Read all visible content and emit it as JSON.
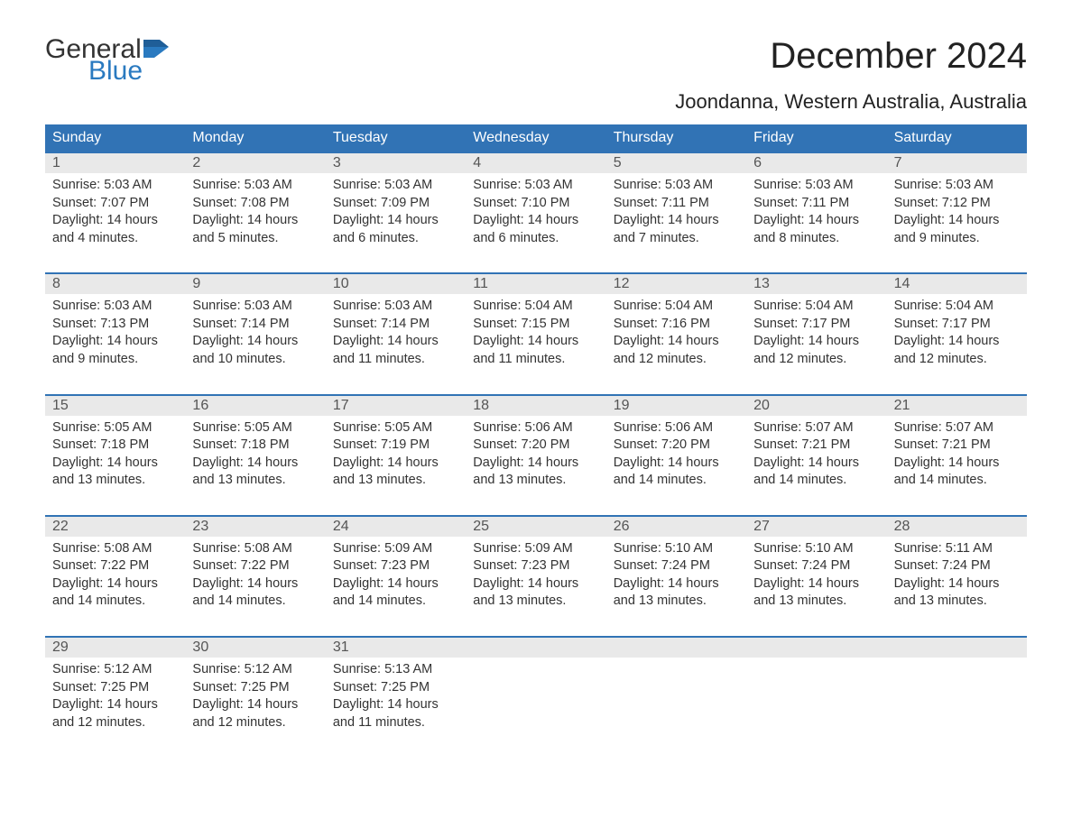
{
  "logo": {
    "word1": "General",
    "word2": "Blue",
    "flag_color": "#2a7ac0",
    "text_color": "#333333"
  },
  "title": "December 2024",
  "subtitle": "Joondanna, Western Australia, Australia",
  "colors": {
    "header_bg": "#3173b5",
    "header_text": "#ffffff",
    "daynum_bg": "#e9e9e9",
    "week_border": "#3173b5",
    "body_text": "#333333",
    "background": "#ffffff"
  },
  "typography": {
    "title_fontsize": 40,
    "subtitle_fontsize": 22,
    "dow_fontsize": 16,
    "day_fontsize": 14.5,
    "font_family": "Arial"
  },
  "days_of_week": [
    "Sunday",
    "Monday",
    "Tuesday",
    "Wednesday",
    "Thursday",
    "Friday",
    "Saturday"
  ],
  "weeks": [
    [
      {
        "n": "1",
        "sunrise": "Sunrise: 5:03 AM",
        "sunset": "Sunset: 7:07 PM",
        "d1": "Daylight: 14 hours",
        "d2": "and 4 minutes."
      },
      {
        "n": "2",
        "sunrise": "Sunrise: 5:03 AM",
        "sunset": "Sunset: 7:08 PM",
        "d1": "Daylight: 14 hours",
        "d2": "and 5 minutes."
      },
      {
        "n": "3",
        "sunrise": "Sunrise: 5:03 AM",
        "sunset": "Sunset: 7:09 PM",
        "d1": "Daylight: 14 hours",
        "d2": "and 6 minutes."
      },
      {
        "n": "4",
        "sunrise": "Sunrise: 5:03 AM",
        "sunset": "Sunset: 7:10 PM",
        "d1": "Daylight: 14 hours",
        "d2": "and 6 minutes."
      },
      {
        "n": "5",
        "sunrise": "Sunrise: 5:03 AM",
        "sunset": "Sunset: 7:11 PM",
        "d1": "Daylight: 14 hours",
        "d2": "and 7 minutes."
      },
      {
        "n": "6",
        "sunrise": "Sunrise: 5:03 AM",
        "sunset": "Sunset: 7:11 PM",
        "d1": "Daylight: 14 hours",
        "d2": "and 8 minutes."
      },
      {
        "n": "7",
        "sunrise": "Sunrise: 5:03 AM",
        "sunset": "Sunset: 7:12 PM",
        "d1": "Daylight: 14 hours",
        "d2": "and 9 minutes."
      }
    ],
    [
      {
        "n": "8",
        "sunrise": "Sunrise: 5:03 AM",
        "sunset": "Sunset: 7:13 PM",
        "d1": "Daylight: 14 hours",
        "d2": "and 9 minutes."
      },
      {
        "n": "9",
        "sunrise": "Sunrise: 5:03 AM",
        "sunset": "Sunset: 7:14 PM",
        "d1": "Daylight: 14 hours",
        "d2": "and 10 minutes."
      },
      {
        "n": "10",
        "sunrise": "Sunrise: 5:03 AM",
        "sunset": "Sunset: 7:14 PM",
        "d1": "Daylight: 14 hours",
        "d2": "and 11 minutes."
      },
      {
        "n": "11",
        "sunrise": "Sunrise: 5:04 AM",
        "sunset": "Sunset: 7:15 PM",
        "d1": "Daylight: 14 hours",
        "d2": "and 11 minutes."
      },
      {
        "n": "12",
        "sunrise": "Sunrise: 5:04 AM",
        "sunset": "Sunset: 7:16 PM",
        "d1": "Daylight: 14 hours",
        "d2": "and 12 minutes."
      },
      {
        "n": "13",
        "sunrise": "Sunrise: 5:04 AM",
        "sunset": "Sunset: 7:17 PM",
        "d1": "Daylight: 14 hours",
        "d2": "and 12 minutes."
      },
      {
        "n": "14",
        "sunrise": "Sunrise: 5:04 AM",
        "sunset": "Sunset: 7:17 PM",
        "d1": "Daylight: 14 hours",
        "d2": "and 12 minutes."
      }
    ],
    [
      {
        "n": "15",
        "sunrise": "Sunrise: 5:05 AM",
        "sunset": "Sunset: 7:18 PM",
        "d1": "Daylight: 14 hours",
        "d2": "and 13 minutes."
      },
      {
        "n": "16",
        "sunrise": "Sunrise: 5:05 AM",
        "sunset": "Sunset: 7:18 PM",
        "d1": "Daylight: 14 hours",
        "d2": "and 13 minutes."
      },
      {
        "n": "17",
        "sunrise": "Sunrise: 5:05 AM",
        "sunset": "Sunset: 7:19 PM",
        "d1": "Daylight: 14 hours",
        "d2": "and 13 minutes."
      },
      {
        "n": "18",
        "sunrise": "Sunrise: 5:06 AM",
        "sunset": "Sunset: 7:20 PM",
        "d1": "Daylight: 14 hours",
        "d2": "and 13 minutes."
      },
      {
        "n": "19",
        "sunrise": "Sunrise: 5:06 AM",
        "sunset": "Sunset: 7:20 PM",
        "d1": "Daylight: 14 hours",
        "d2": "and 14 minutes."
      },
      {
        "n": "20",
        "sunrise": "Sunrise: 5:07 AM",
        "sunset": "Sunset: 7:21 PM",
        "d1": "Daylight: 14 hours",
        "d2": "and 14 minutes."
      },
      {
        "n": "21",
        "sunrise": "Sunrise: 5:07 AM",
        "sunset": "Sunset: 7:21 PM",
        "d1": "Daylight: 14 hours",
        "d2": "and 14 minutes."
      }
    ],
    [
      {
        "n": "22",
        "sunrise": "Sunrise: 5:08 AM",
        "sunset": "Sunset: 7:22 PM",
        "d1": "Daylight: 14 hours",
        "d2": "and 14 minutes."
      },
      {
        "n": "23",
        "sunrise": "Sunrise: 5:08 AM",
        "sunset": "Sunset: 7:22 PM",
        "d1": "Daylight: 14 hours",
        "d2": "and 14 minutes."
      },
      {
        "n": "24",
        "sunrise": "Sunrise: 5:09 AM",
        "sunset": "Sunset: 7:23 PM",
        "d1": "Daylight: 14 hours",
        "d2": "and 14 minutes."
      },
      {
        "n": "25",
        "sunrise": "Sunrise: 5:09 AM",
        "sunset": "Sunset: 7:23 PM",
        "d1": "Daylight: 14 hours",
        "d2": "and 13 minutes."
      },
      {
        "n": "26",
        "sunrise": "Sunrise: 5:10 AM",
        "sunset": "Sunset: 7:24 PM",
        "d1": "Daylight: 14 hours",
        "d2": "and 13 minutes."
      },
      {
        "n": "27",
        "sunrise": "Sunrise: 5:10 AM",
        "sunset": "Sunset: 7:24 PM",
        "d1": "Daylight: 14 hours",
        "d2": "and 13 minutes."
      },
      {
        "n": "28",
        "sunrise": "Sunrise: 5:11 AM",
        "sunset": "Sunset: 7:24 PM",
        "d1": "Daylight: 14 hours",
        "d2": "and 13 minutes."
      }
    ],
    [
      {
        "n": "29",
        "sunrise": "Sunrise: 5:12 AM",
        "sunset": "Sunset: 7:25 PM",
        "d1": "Daylight: 14 hours",
        "d2": "and 12 minutes."
      },
      {
        "n": "30",
        "sunrise": "Sunrise: 5:12 AM",
        "sunset": "Sunset: 7:25 PM",
        "d1": "Daylight: 14 hours",
        "d2": "and 12 minutes."
      },
      {
        "n": "31",
        "sunrise": "Sunrise: 5:13 AM",
        "sunset": "Sunset: 7:25 PM",
        "d1": "Daylight: 14 hours",
        "d2": "and 11 minutes."
      },
      null,
      null,
      null,
      null
    ]
  ]
}
